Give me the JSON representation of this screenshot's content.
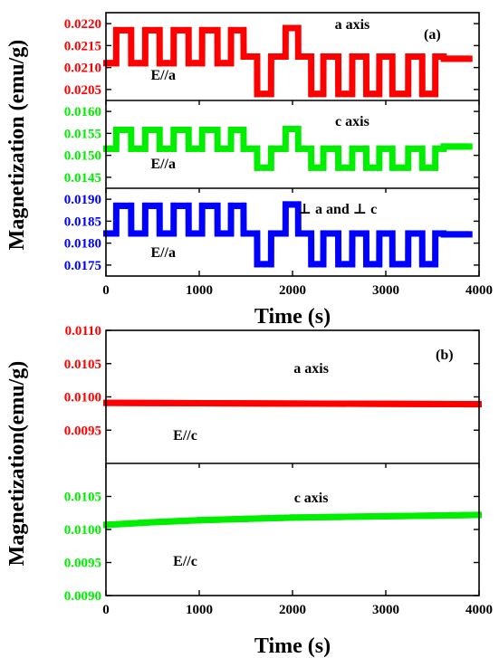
{
  "chart_data": [
    {
      "type": "line",
      "panel_label": "(a)",
      "xlabel": "Time (s)",
      "ylabel": "Magnetization (emu/g)",
      "xlim": [
        0,
        4000
      ],
      "x_ticks": [
        "0",
        "1000",
        "2000",
        "3000",
        "4000"
      ],
      "subplots": [
        {
          "series_color": "#ff0000",
          "annotation": "a axis",
          "field_label": "E//a",
          "ylim": [
            0.02025,
            0.02225
          ],
          "y_ticks": [
            {
              "value": 0.0205,
              "label": "0.0205"
            },
            {
              "value": 0.021,
              "label": "0.0210"
            },
            {
              "value": 0.0215,
              "label": "0.0215"
            },
            {
              "value": 0.022,
              "label": "0.0220"
            }
          ],
          "x": [
            0,
            110,
            111,
            270,
            271,
            420,
            421,
            575,
            576,
            725,
            726,
            885,
            886,
            1030,
            1031,
            1195,
            1196,
            1340,
            1341,
            1475,
            1476,
            1620,
            1621,
            1770,
            1771,
            1925,
            1926,
            2060,
            2061,
            2200,
            2201,
            2330,
            2331,
            2490,
            2491,
            2640,
            2641,
            2790,
            2791,
            2930,
            2931,
            3070,
            3071,
            3240,
            3241,
            3390,
            3391,
            3530,
            3531,
            3620,
            3621,
            3900
          ],
          "y": [
            0.0211,
            0.0211,
            0.02185,
            0.02185,
            0.0211,
            0.0211,
            0.02185,
            0.02185,
            0.0211,
            0.0211,
            0.02185,
            0.02185,
            0.0211,
            0.0211,
            0.02185,
            0.02185,
            0.0211,
            0.0211,
            0.02185,
            0.02185,
            0.02125,
            0.02125,
            0.0204,
            0.0204,
            0.02125,
            0.02125,
            0.0219,
            0.0219,
            0.02125,
            0.02125,
            0.0204,
            0.0204,
            0.02125,
            0.02125,
            0.0204,
            0.0204,
            0.02125,
            0.02125,
            0.0204,
            0.0204,
            0.02125,
            0.02125,
            0.0204,
            0.0204,
            0.02125,
            0.02125,
            0.0204,
            0.0204,
            0.02125,
            0.02125,
            0.0212,
            0.0212
          ]
        },
        {
          "series_color": "#00ee00",
          "annotation": "c axis",
          "field_label": "E//a",
          "ylim": [
            0.01425,
            0.01625
          ],
          "y_ticks": [
            {
              "value": 0.0145,
              "label": "0.0145"
            },
            {
              "value": 0.015,
              "label": "0.0150"
            },
            {
              "value": 0.0155,
              "label": "0.0155"
            },
            {
              "value": 0.016,
              "label": "0.0160"
            }
          ],
          "x": [
            0,
            110,
            111,
            270,
            271,
            420,
            421,
            575,
            576,
            725,
            726,
            885,
            886,
            1030,
            1031,
            1195,
            1196,
            1340,
            1341,
            1475,
            1476,
            1620,
            1621,
            1770,
            1771,
            1925,
            1926,
            2060,
            2061,
            2200,
            2201,
            2330,
            2331,
            2490,
            2491,
            2640,
            2641,
            2790,
            2791,
            2930,
            2931,
            3070,
            3071,
            3240,
            3241,
            3390,
            3391,
            3530,
            3531,
            3620,
            3621,
            3900
          ],
          "y": [
            0.01515,
            0.01515,
            0.01558,
            0.01558,
            0.01515,
            0.01515,
            0.01558,
            0.01558,
            0.01515,
            0.01515,
            0.01558,
            0.01558,
            0.01515,
            0.01515,
            0.01558,
            0.01558,
            0.01515,
            0.01515,
            0.01558,
            0.01558,
            0.01515,
            0.01515,
            0.01472,
            0.01472,
            0.01515,
            0.01515,
            0.0156,
            0.0156,
            0.01515,
            0.01515,
            0.01472,
            0.01472,
            0.01515,
            0.01515,
            0.01472,
            0.01472,
            0.01515,
            0.01515,
            0.01472,
            0.01472,
            0.01515,
            0.01515,
            0.01472,
            0.01472,
            0.01515,
            0.01515,
            0.01472,
            0.01472,
            0.01515,
            0.01515,
            0.0152,
            0.0152
          ]
        },
        {
          "series_color": "#0000ff",
          "annotation": "⊥ a and ⊥ c",
          "field_label": "E//a",
          "ylim": [
            0.01725,
            0.01925
          ],
          "y_ticks": [
            {
              "value": 0.0175,
              "label": "0.0175"
            },
            {
              "value": 0.018,
              "label": "0.0180"
            },
            {
              "value": 0.0185,
              "label": "0.0185"
            },
            {
              "value": 0.019,
              "label": "0.0190"
            }
          ],
          "x": [
            0,
            110,
            111,
            270,
            271,
            420,
            421,
            575,
            576,
            725,
            726,
            885,
            886,
            1030,
            1031,
            1195,
            1196,
            1340,
            1341,
            1475,
            1476,
            1620,
            1621,
            1770,
            1771,
            1925,
            1926,
            2060,
            2061,
            2200,
            2201,
            2330,
            2331,
            2490,
            2491,
            2640,
            2641,
            2790,
            2791,
            2930,
            2931,
            3070,
            3071,
            3240,
            3241,
            3390,
            3391,
            3530,
            3531,
            3620,
            3621,
            3900
          ],
          "y": [
            0.01822,
            0.01822,
            0.01885,
            0.01885,
            0.01822,
            0.01822,
            0.01885,
            0.01885,
            0.01822,
            0.01822,
            0.01885,
            0.01885,
            0.01822,
            0.01822,
            0.01885,
            0.01885,
            0.01822,
            0.01822,
            0.01885,
            0.01885,
            0.01822,
            0.01822,
            0.01752,
            0.01752,
            0.01822,
            0.01822,
            0.01888,
            0.01888,
            0.01822,
            0.01822,
            0.01752,
            0.01752,
            0.01822,
            0.01822,
            0.01752,
            0.01752,
            0.01822,
            0.01822,
            0.01752,
            0.01752,
            0.01822,
            0.01822,
            0.01752,
            0.01752,
            0.01822,
            0.01822,
            0.01752,
            0.01752,
            0.01822,
            0.01822,
            0.0182,
            0.0182
          ]
        }
      ]
    },
    {
      "type": "line",
      "panel_label": "(b)",
      "xlabel": "Time (s)",
      "ylabel": "Magnetization(emu/g)",
      "xlim": [
        0,
        4000
      ],
      "x_ticks": [
        "0",
        "1000",
        "2000",
        "3000",
        "4000"
      ],
      "subplots": [
        {
          "series_color": "#ff0000",
          "annotation": "a axis",
          "field_label": "E//c",
          "ylim": [
            0.009,
            0.011
          ],
          "y_ticks": [
            {
              "value": 0.0095,
              "label": "0.0095"
            },
            {
              "value": 0.01,
              "label": "0.0100"
            },
            {
              "value": 0.0105,
              "label": "0.0105"
            },
            {
              "value": 0.011,
              "label": "0.0110"
            }
          ],
          "x": [
            0,
            4000
          ],
          "y": [
            0.00991,
            0.00989
          ]
        },
        {
          "series_color": "#00ee00",
          "annotation": "c axis",
          "field_label": "E//c",
          "ylim": [
            0.009,
            0.011
          ],
          "y_ticks": [
            {
              "value": 0.009,
              "label": "0.0090"
            },
            {
              "value": 0.0095,
              "label": "0.0095"
            },
            {
              "value": 0.01,
              "label": "0.0100"
            },
            {
              "value": 0.0105,
              "label": "0.0105"
            }
          ],
          "x": [
            0,
            500,
            1000,
            1500,
            2000,
            2500,
            3000,
            3500,
            4000
          ],
          "y": [
            0.01007,
            0.01011,
            0.01014,
            0.01016,
            0.01018,
            0.01019,
            0.0102,
            0.01021,
            0.01022
          ]
        }
      ]
    }
  ]
}
